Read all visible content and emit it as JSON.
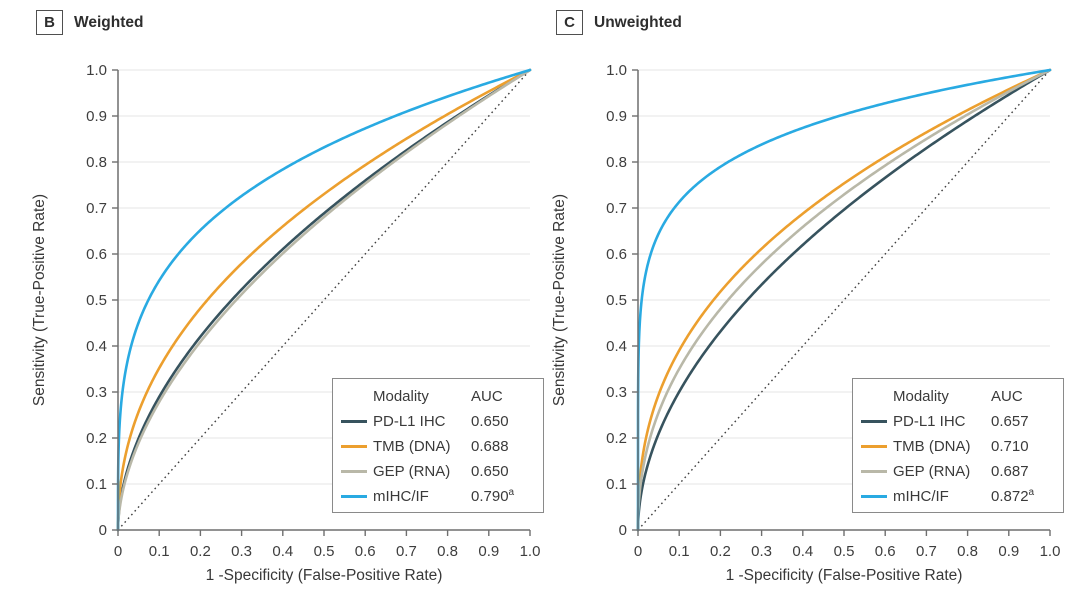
{
  "colors": {
    "grid": "#e6e6e6",
    "axis": "#6f6f6f",
    "reference_line": "#3f3f3f",
    "text": "#3e3e3e",
    "pd_l1_ihc": "#37535e",
    "tmb_dna": "#ec9f2e",
    "gep_rna": "#b9b8a8",
    "mihc_if": "#29aae2"
  },
  "chart_data": [
    {
      "type": "line",
      "panel_letter": "B",
      "title": "Weighted",
      "xlabel": "1 -Specificity (False-Positive Rate)",
      "ylabel": "Sensitivity (True-Positive Rate)",
      "xlim": [
        0,
        1
      ],
      "ylim": [
        0,
        1
      ],
      "x_tick_labels": [
        "0",
        "0.1",
        "0.2",
        "0.3",
        "0.4",
        "0.5",
        "0.6",
        "0.7",
        "0.8",
        "0.9",
        "1.0"
      ],
      "y_tick_labels": [
        "0",
        "0.1",
        "0.2",
        "0.3",
        "0.4",
        "0.5",
        "0.6",
        "0.7",
        "0.8",
        "0.9",
        "1.0"
      ],
      "grid": "horizontal-only",
      "legend": {
        "modality_header": "Modality",
        "auc_header": "AUC",
        "position": "lower-right"
      },
      "reference": {
        "type": "diagonal-chance-line",
        "style": "dotted",
        "from": [
          0,
          0
        ],
        "to": [
          1,
          1
        ]
      },
      "x_sample": [
        0,
        0.01,
        0.02,
        0.05,
        0.1,
        0.2,
        0.3,
        0.4,
        0.5,
        0.6,
        0.7,
        0.8,
        0.9,
        1
      ],
      "series": [
        {
          "name": "PD-L1 IHC",
          "auc": 0.65,
          "auc_display": "0.650",
          "auc_sup": "",
          "color": "#37535e",
          "curve_exponent": 0.5385,
          "y": [
            0,
            0.084,
            0.122,
            0.199,
            0.289,
            0.42,
            0.523,
            0.611,
            0.689,
            0.759,
            0.825,
            0.887,
            0.945,
            1
          ]
        },
        {
          "name": "TMB (DNA)",
          "auc": 0.688,
          "auc_display": "0.688",
          "auc_sup": "",
          "color": "#ec9f2e",
          "curve_exponent": 0.4535,
          "y": [
            0,
            0.124,
            0.17,
            0.257,
            0.352,
            0.482,
            0.579,
            0.66,
            0.73,
            0.793,
            0.851,
            0.904,
            0.953,
            1
          ]
        },
        {
          "name": "GEP (RNA)",
          "auc": 0.65,
          "auc_display": "0.650",
          "auc_sup": "",
          "color": "#b9b8a8",
          "curve_exponent": 0.5552,
          "y": [
            0,
            0.078,
            0.114,
            0.19,
            0.278,
            0.409,
            0.513,
            0.601,
            0.681,
            0.753,
            0.82,
            0.884,
            0.943,
            1
          ]
        },
        {
          "name": "mIHC/IF",
          "auc": 0.79,
          "auc_display": "0.790",
          "auc_sup": "a",
          "color": "#29aae2",
          "curve_exponent": 0.2658,
          "y": [
            0,
            0.294,
            0.354,
            0.451,
            0.542,
            0.652,
            0.726,
            0.784,
            0.832,
            0.873,
            0.909,
            0.942,
            0.972,
            1
          ]
        }
      ]
    },
    {
      "type": "line",
      "panel_letter": "C",
      "title": "Unweighted",
      "xlabel": "1 -Specificity (False-Positive Rate)",
      "ylabel": "Sensitivity (True-Positive Rate)",
      "xlim": [
        0,
        1
      ],
      "ylim": [
        0,
        1
      ],
      "x_tick_labels": [
        "0",
        "0.1",
        "0.2",
        "0.3",
        "0.4",
        "0.5",
        "0.6",
        "0.7",
        "0.8",
        "0.9",
        "1.0"
      ],
      "y_tick_labels": [
        "0",
        "0.1",
        "0.2",
        "0.3",
        "0.4",
        "0.5",
        "0.6",
        "0.7",
        "0.8",
        "0.9",
        "1.0"
      ],
      "grid": "horizontal-only",
      "legend": {
        "modality_header": "Modality",
        "auc_header": "AUC",
        "position": "lower-right"
      },
      "reference": {
        "type": "diagonal-chance-line",
        "style": "dotted",
        "from": [
          0,
          0
        ],
        "to": [
          1,
          1
        ]
      },
      "x_sample": [
        0,
        0.01,
        0.02,
        0.05,
        0.1,
        0.2,
        0.3,
        0.4,
        0.5,
        0.6,
        0.7,
        0.8,
        0.9,
        1
      ],
      "series": [
        {
          "name": "PD-L1 IHC",
          "auc": 0.657,
          "auc_display": "0.657",
          "auc_sup": "",
          "color": "#37535e",
          "curve_exponent": 0.5221,
          "y": [
            0,
            0.09,
            0.13,
            0.209,
            0.3,
            0.432,
            0.533,
            0.62,
            0.696,
            0.766,
            0.83,
            0.89,
            0.946,
            1
          ]
        },
        {
          "name": "TMB (DNA)",
          "auc": 0.71,
          "auc_display": "0.710",
          "auc_sup": "",
          "color": "#ec9f2e",
          "curve_exponent": 0.4085,
          "y": [
            0,
            0.152,
            0.202,
            0.294,
            0.39,
            0.518,
            0.612,
            0.688,
            0.753,
            0.812,
            0.864,
            0.913,
            0.958,
            1
          ]
        },
        {
          "name": "GEP (RNA)",
          "auc": 0.687,
          "auc_display": "0.687",
          "auc_sup": "",
          "color": "#b9b8a8",
          "curve_exponent": 0.4556,
          "y": [
            0,
            0.123,
            0.168,
            0.255,
            0.35,
            0.48,
            0.578,
            0.659,
            0.729,
            0.792,
            0.85,
            0.903,
            0.953,
            1
          ]
        },
        {
          "name": "mIHC/IF",
          "auc": 0.872,
          "auc_display": "0.872",
          "auc_sup": "a",
          "color": "#29aae2",
          "curve_exponent": 0.1468,
          "y": [
            0,
            0.509,
            0.563,
            0.644,
            0.713,
            0.79,
            0.838,
            0.874,
            0.903,
            0.928,
            0.949,
            0.968,
            0.985,
            1
          ]
        }
      ]
    }
  ]
}
